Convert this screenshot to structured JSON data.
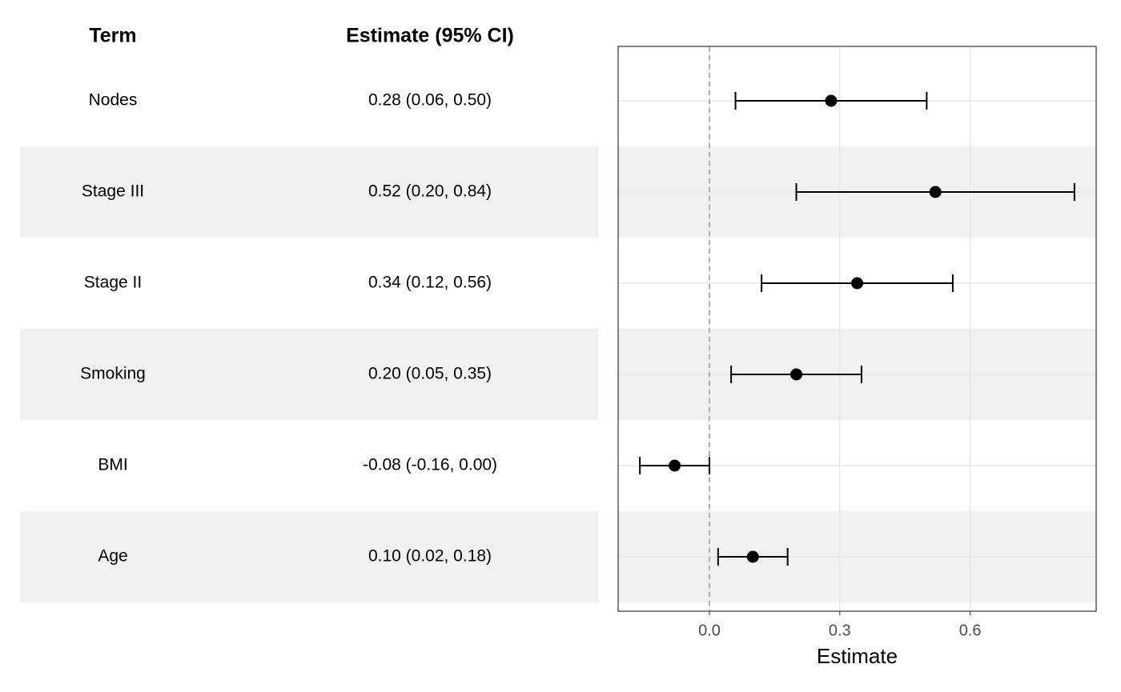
{
  "chart_data": {
    "type": "forest",
    "columns": [
      "Term",
      "Estimate (95% CI)"
    ],
    "categories": [
      "Nodes",
      "Stage III",
      "Stage II",
      "Smoking",
      "BMI",
      "Age"
    ],
    "values": [
      0.28,
      0.52,
      0.34,
      0.2,
      -0.08,
      0.1
    ],
    "lower": [
      0.06,
      0.2,
      0.12,
      0.05,
      -0.16,
      0.02
    ],
    "upper": [
      0.5,
      0.84,
      0.56,
      0.35,
      0.0,
      0.18
    ],
    "value_labels": [
      "0.28 (0.06, 0.50)",
      "0.52 (0.20, 0.84)",
      "0.34 (0.12, 0.56)",
      "0.20 (0.05, 0.35)",
      "-0.08 (-0.16, 0.00)",
      "0.10 (0.02, 0.18)"
    ],
    "xlabel": "Estimate",
    "xlim": [
      -0.21,
      0.89
    ],
    "xticks": [
      {
        "value": 0,
        "label": "0.0"
      },
      0.3,
      0.6
    ],
    "ref_line": 0,
    "grid": true,
    "color": "#000000",
    "stripe_color": "#f0f0f0"
  }
}
